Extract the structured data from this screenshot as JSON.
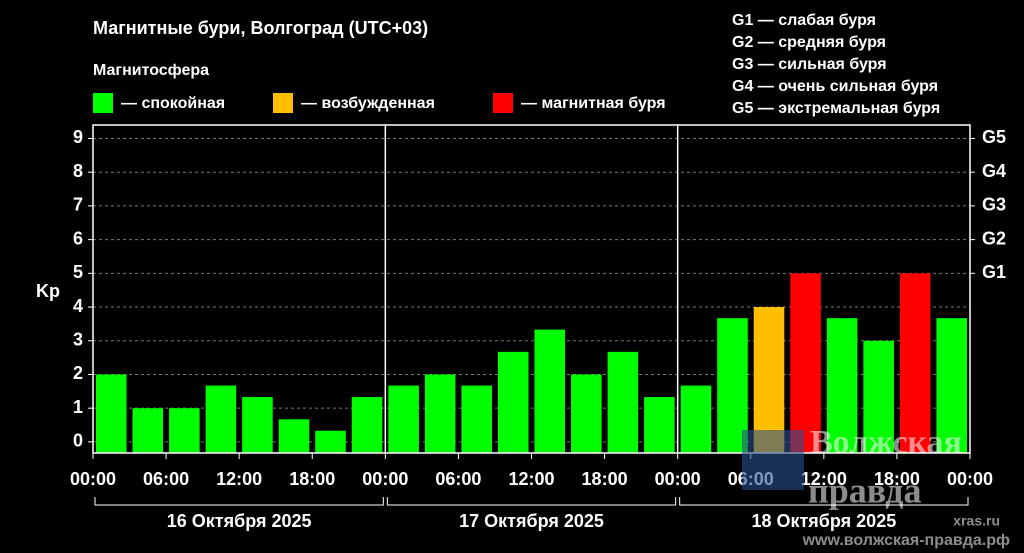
{
  "chart_data": {
    "type": "bar",
    "title": "Магнитные бури, Волгоград (UTC+03)",
    "subtitle": "Магнитосфера",
    "legend": [
      {
        "name": "— спокойная",
        "color": "#00ff00"
      },
      {
        "name": "— возбужденная",
        "color": "#ffbf00"
      },
      {
        "name": "— магнитная буря",
        "color": "#ff0000"
      }
    ],
    "scale_legend": [
      "G1 — слабая буря",
      "G2 — средняя буря",
      "G3 — сильная буря",
      "G4 — очень сильная буря",
      "G5 — экстремальная буря"
    ],
    "y_label": "Kp",
    "x": [
      0,
      3,
      6,
      9,
      12,
      15,
      18,
      21,
      24,
      27,
      30,
      33,
      36,
      39,
      42,
      45,
      48,
      51,
      54,
      57,
      60,
      63,
      66,
      69
    ],
    "bar_width": 3,
    "values": [
      2.0,
      1.0,
      1.0,
      1.67,
      1.33,
      0.67,
      0.33,
      1.33,
      1.67,
      2.0,
      1.67,
      2.67,
      3.33,
      2.0,
      2.67,
      1.33,
      1.67,
      3.67,
      4.0,
      5.0,
      3.67,
      3.0,
      5.0,
      3.67
    ],
    "colors": [
      "#00ff00",
      "#00ff00",
      "#00ff00",
      "#00ff00",
      "#00ff00",
      "#00ff00",
      "#00ff00",
      "#00ff00",
      "#00ff00",
      "#00ff00",
      "#00ff00",
      "#00ff00",
      "#00ff00",
      "#00ff00",
      "#00ff00",
      "#00ff00",
      "#00ff00",
      "#00ff00",
      "#ffbf00",
      "#ff0000",
      "#00ff00",
      "#00ff00",
      "#ff0000",
      "#00ff00"
    ],
    "xlim": [
      0,
      72
    ],
    "xticks": [
      {
        "value": 0,
        "label": "00:00"
      },
      {
        "value": 6,
        "label": "06:00"
      },
      {
        "value": 12,
        "label": "12:00"
      },
      {
        "value": 18,
        "label": "18:00"
      },
      {
        "value": 24,
        "label": "00:00"
      },
      {
        "value": 30,
        "label": "06:00"
      },
      {
        "value": 36,
        "label": "12:00"
      },
      {
        "value": 42,
        "label": "18:00"
      },
      {
        "value": 48,
        "label": "00:00"
      },
      {
        "value": 54,
        "label": "06:00"
      },
      {
        "value": 60,
        "label": "12:00"
      },
      {
        "value": 66,
        "label": "18:00"
      },
      {
        "value": 72,
        "label": "00:00"
      }
    ],
    "day_separators": [
      24,
      48
    ],
    "days": [
      {
        "label": "16 Октября 2025",
        "start": 0,
        "end": 24
      },
      {
        "label": "17 Октября 2025",
        "start": 24,
        "end": 48
      },
      {
        "label": "18 Октября 2025",
        "start": 48,
        "end": 72
      }
    ],
    "ylim": [
      -0.33,
      9.4
    ],
    "yticks": [
      0,
      1,
      2,
      3,
      4,
      5,
      6,
      7,
      8,
      9
    ],
    "y2lim": [
      -0.33,
      9.4
    ],
    "y2ticks": [
      {
        "value": 5,
        "label": "G1"
      },
      {
        "value": 6,
        "label": "G2"
      },
      {
        "value": 7,
        "label": "G3"
      },
      {
        "value": 8,
        "label": "G4"
      },
      {
        "value": 9,
        "label": "G5"
      }
    ],
    "grid": true,
    "watermark": [
      "Волжская",
      "правда",
      "xras.ru",
      "www.волжская-правда.рф"
    ]
  }
}
